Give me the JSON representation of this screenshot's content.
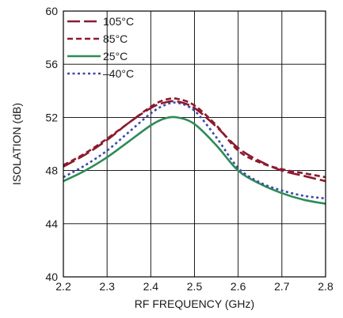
{
  "chart_data": {
    "type": "line",
    "title": "",
    "xlabel": "RF FREQUENCY (GHz)",
    "ylabel": "ISOLATION (dB)",
    "xlim": [
      2.2,
      2.8
    ],
    "ylim": [
      40,
      60
    ],
    "xticks": [
      2.2,
      2.3,
      2.4,
      2.5,
      2.6,
      2.7,
      2.8
    ],
    "xtick_labels": [
      "2.2",
      "2.3",
      "2.4",
      "2.5",
      "2.6",
      "2.7",
      "2.8"
    ],
    "yticks": [
      40,
      44,
      48,
      52,
      56,
      60
    ],
    "ytick_labels": [
      "40",
      "44",
      "48",
      "52",
      "56",
      "60"
    ],
    "grid": true,
    "legend_position": "top-left",
    "series": [
      {
        "name": "105°C",
        "color": "#8b1a2e",
        "dash": "long-dash",
        "x": [
          2.2,
          2.25,
          2.3,
          2.35,
          2.4,
          2.43,
          2.46,
          2.5,
          2.55,
          2.6,
          2.65,
          2.7,
          2.75,
          2.8
        ],
        "y": [
          48.3,
          49.2,
          50.3,
          51.6,
          52.7,
          53.1,
          53.2,
          52.7,
          51.3,
          49.7,
          48.7,
          48.0,
          47.6,
          47.2
        ]
      },
      {
        "name": "85°C",
        "color": "#8b1a2e",
        "dash": "short-dash",
        "x": [
          2.2,
          2.25,
          2.3,
          2.35,
          2.4,
          2.43,
          2.46,
          2.5,
          2.55,
          2.6,
          2.65,
          2.7,
          2.75,
          2.8
        ],
        "y": [
          48.4,
          49.3,
          50.4,
          51.6,
          52.8,
          53.3,
          53.4,
          52.9,
          51.4,
          49.5,
          48.6,
          48.1,
          47.8,
          47.5
        ]
      },
      {
        "name": "25°C",
        "color": "#2e8b57",
        "dash": "solid",
        "x": [
          2.2,
          2.25,
          2.3,
          2.35,
          2.4,
          2.43,
          2.46,
          2.5,
          2.55,
          2.6,
          2.65,
          2.7,
          2.75,
          2.8
        ],
        "y": [
          47.2,
          48.0,
          49.0,
          50.2,
          51.4,
          51.9,
          52.0,
          51.5,
          49.9,
          48.0,
          47.0,
          46.3,
          45.8,
          45.5
        ]
      },
      {
        "name": "–40°C",
        "color": "#3b4aa8",
        "dash": "dotted",
        "x": [
          2.2,
          2.25,
          2.3,
          2.35,
          2.4,
          2.43,
          2.46,
          2.5,
          2.55,
          2.6,
          2.65,
          2.7,
          2.75,
          2.8
        ],
        "y": [
          47.5,
          48.4,
          49.5,
          50.9,
          52.3,
          52.9,
          53.1,
          52.5,
          50.5,
          48.2,
          47.1,
          46.5,
          46.1,
          45.9
        ]
      }
    ]
  }
}
